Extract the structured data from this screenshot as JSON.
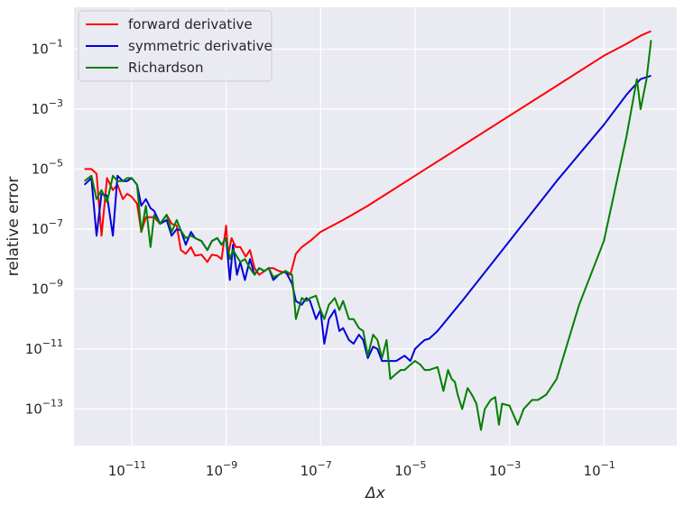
{
  "chart_data": {
    "type": "line",
    "xlabel": "Δx",
    "ylabel": "relative error",
    "xscale": "log",
    "yscale": "log",
    "xlim": [
      6e-13,
      3.5
    ],
    "ylim": [
      6e-15,
      2.5
    ],
    "x_ticks": [
      {
        "base": "10",
        "exp": "−11",
        "value": 1e-11
      },
      {
        "base": "10",
        "exp": "−9",
        "value": 1e-09
      },
      {
        "base": "10",
        "exp": "−7",
        "value": 1e-07
      },
      {
        "base": "10",
        "exp": "−5",
        "value": 1e-05
      },
      {
        "base": "10",
        "exp": "−3",
        "value": 0.001
      },
      {
        "base": "10",
        "exp": "−1",
        "value": 0.1
      }
    ],
    "y_ticks": [
      {
        "base": "10",
        "exp": "−1",
        "value": 0.1
      },
      {
        "base": "10",
        "exp": "−3",
        "value": 0.001
      },
      {
        "base": "10",
        "exp": "−5",
        "value": 1e-05
      },
      {
        "base": "10",
        "exp": "−7",
        "value": 1e-07
      },
      {
        "base": "10",
        "exp": "−9",
        "value": 1e-09
      },
      {
        "base": "10",
        "exp": "−11",
        "value": 1e-11
      },
      {
        "base": "10",
        "exp": "−13",
        "value": 1e-13
      }
    ],
    "grid": true,
    "legend_position": "top-left",
    "background": "#eaeaf2",
    "series": [
      {
        "name": "forward derivative",
        "color": "#ff0000",
        "points": [
          [
            1e-12,
            1e-05
          ],
          [
            1.4e-12,
            1e-05
          ],
          [
            1.8e-12,
            7e-06
          ],
          [
            2.3e-12,
            6e-08
          ],
          [
            3e-12,
            5e-06
          ],
          [
            4e-12,
            2e-06
          ],
          [
            5e-12,
            3e-06
          ],
          [
            6.5e-12,
            1e-06
          ],
          [
            8e-12,
            1.5e-06
          ],
          [
            1e-11,
            1.2e-06
          ],
          [
            1.3e-11,
            7e-07
          ],
          [
            1.6e-11,
            8e-08
          ],
          [
            2e-11,
            2.5e-07
          ],
          [
            3e-11,
            2.5e-07
          ],
          [
            4e-11,
            1.5e-07
          ],
          [
            5.5e-11,
            3e-07
          ],
          [
            7e-11,
            1.5e-07
          ],
          [
            9e-11,
            1.3e-07
          ],
          [
            1.1e-10,
            2e-08
          ],
          [
            1.4e-10,
            1.5e-08
          ],
          [
            1.8e-10,
            2.5e-08
          ],
          [
            2.2e-10,
            1.3e-08
          ],
          [
            3e-10,
            1.4e-08
          ],
          [
            4e-10,
            8e-09
          ],
          [
            5e-10,
            1.4e-08
          ],
          [
            6.5e-10,
            1.3e-08
          ],
          [
            8e-10,
            1e-08
          ],
          [
            1e-09,
            1.3e-07
          ],
          [
            1.1e-09,
            1.3e-08
          ],
          [
            1.3e-09,
            5e-08
          ],
          [
            1.6e-09,
            2.5e-08
          ],
          [
            2e-09,
            2.5e-08
          ],
          [
            2.6e-09,
            1.2e-08
          ],
          [
            3.2e-09,
            2e-08
          ],
          [
            4e-09,
            5e-09
          ],
          [
            5e-09,
            3e-09
          ],
          [
            6.5e-09,
            4e-09
          ],
          [
            8e-09,
            5e-09
          ],
          [
            1e-08,
            5e-09
          ],
          [
            1.3e-08,
            4e-09
          ],
          [
            1.8e-08,
            3.5e-09
          ],
          [
            2.3e-08,
            3e-09
          ],
          [
            3e-08,
            1.5e-08
          ],
          [
            4e-08,
            2.5e-08
          ],
          [
            6e-08,
            4e-08
          ],
          [
            1e-07,
            8e-08
          ],
          [
            3e-07,
            2e-07
          ],
          [
            1e-06,
            6e-07
          ],
          [
            1e-05,
            6e-06
          ],
          [
            0.0001,
            6e-05
          ],
          [
            0.001,
            0.0006
          ],
          [
            0.01,
            0.006
          ],
          [
            0.1,
            0.06
          ],
          [
            0.3,
            0.15
          ],
          [
            0.6,
            0.28
          ],
          [
            1.0,
            0.4
          ]
        ]
      },
      {
        "name": "symmetric derivative",
        "color": "#0000dd",
        "points": [
          [
            1e-12,
            3e-06
          ],
          [
            1.4e-12,
            5e-06
          ],
          [
            1.8e-12,
            6e-08
          ],
          [
            2.3e-12,
            1.5e-06
          ],
          [
            3e-12,
            1.3e-06
          ],
          [
            4e-12,
            6e-08
          ],
          [
            5e-12,
            6e-06
          ],
          [
            6.5e-12,
            4e-06
          ],
          [
            8e-12,
            4e-06
          ],
          [
            1e-11,
            5e-06
          ],
          [
            1.3e-11,
            3e-06
          ],
          [
            1.6e-11,
            6e-07
          ],
          [
            2e-11,
            1e-06
          ],
          [
            2.5e-11,
            5e-07
          ],
          [
            3e-11,
            4e-07
          ],
          [
            4e-11,
            1.5e-07
          ],
          [
            5.5e-11,
            2e-07
          ],
          [
            7e-11,
            6e-08
          ],
          [
            9e-11,
            1e-07
          ],
          [
            1.1e-10,
            9e-08
          ],
          [
            1.4e-10,
            3e-08
          ],
          [
            1.8e-10,
            8e-08
          ],
          [
            2.2e-10,
            5e-08
          ],
          [
            3e-10,
            4e-08
          ],
          [
            4e-10,
            2e-08
          ],
          [
            5e-10,
            4e-08
          ],
          [
            6.5e-10,
            5e-08
          ],
          [
            8e-10,
            3e-08
          ],
          [
            1e-09,
            5e-08
          ],
          [
            1.2e-09,
            2e-09
          ],
          [
            1.4e-09,
            3e-08
          ],
          [
            1.7e-09,
            3e-09
          ],
          [
            2e-09,
            8e-09
          ],
          [
            2.5e-09,
            2e-09
          ],
          [
            3.2e-09,
            1e-08
          ],
          [
            4e-09,
            3e-09
          ],
          [
            5e-09,
            5e-09
          ],
          [
            6.5e-09,
            4e-09
          ],
          [
            8e-09,
            5e-09
          ],
          [
            1e-08,
            2e-09
          ],
          [
            1.3e-08,
            3e-09
          ],
          [
            1.8e-08,
            4e-09
          ],
          [
            2.5e-08,
            1.5e-09
          ],
          [
            3e-08,
            4e-10
          ],
          [
            4e-08,
            3e-10
          ],
          [
            5e-08,
            5e-10
          ],
          [
            6e-08,
            4e-10
          ],
          [
            8e-08,
            1e-10
          ],
          [
            1e-07,
            2e-10
          ],
          [
            1.2e-07,
            1.5e-11
          ],
          [
            1.5e-07,
            1e-10
          ],
          [
            2e-07,
            2e-10
          ],
          [
            2.5e-07,
            4e-11
          ],
          [
            3e-07,
            5e-11
          ],
          [
            4e-07,
            2e-11
          ],
          [
            5e-07,
            1.5e-11
          ],
          [
            6.5e-07,
            3e-11
          ],
          [
            8e-07,
            2e-11
          ],
          [
            1e-06,
            5e-12
          ],
          [
            1.3e-06,
            1.2e-11
          ],
          [
            1.6e-06,
            1e-11
          ],
          [
            2e-06,
            4e-12
          ],
          [
            3e-06,
            4e-12
          ],
          [
            4e-06,
            4e-12
          ],
          [
            6e-06,
            6e-12
          ],
          [
            8e-06,
            4e-12
          ],
          [
            1e-05,
            1e-11
          ],
          [
            1.3e-05,
            1.5e-11
          ],
          [
            1.6e-05,
            2e-11
          ],
          [
            2e-05,
            2.2e-11
          ],
          [
            3e-05,
            4e-11
          ],
          [
            0.0001,
            4e-10
          ],
          [
            0.001,
            4e-08
          ],
          [
            0.01,
            4e-06
          ],
          [
            0.1,
            0.0003
          ],
          [
            0.3,
            0.003
          ],
          [
            0.6,
            0.01
          ],
          [
            1.0,
            0.013
          ]
        ]
      },
      {
        "name": "Richardson",
        "color": "#007f00",
        "points": [
          [
            1e-12,
            4e-06
          ],
          [
            1.4e-12,
            6e-06
          ],
          [
            1.8e-12,
            1e-06
          ],
          [
            2.3e-12,
            2e-06
          ],
          [
            3e-12,
            8e-07
          ],
          [
            4e-12,
            6e-06
          ],
          [
            5e-12,
            4e-06
          ],
          [
            6.5e-12,
            4e-06
          ],
          [
            8e-12,
            5e-06
          ],
          [
            1e-11,
            5e-06
          ],
          [
            1.3e-11,
            3e-06
          ],
          [
            1.6e-11,
            8e-08
          ],
          [
            2e-11,
            6e-07
          ],
          [
            2.5e-11,
            2.5e-08
          ],
          [
            3e-11,
            3e-07
          ],
          [
            4e-11,
            1.5e-07
          ],
          [
            5.5e-11,
            3e-07
          ],
          [
            7e-11,
            8e-08
          ],
          [
            9e-11,
            2e-07
          ],
          [
            1.1e-10,
            9e-08
          ],
          [
            1.4e-10,
            5e-08
          ],
          [
            1.8e-10,
            6e-08
          ],
          [
            2.2e-10,
            5e-08
          ],
          [
            3e-10,
            4e-08
          ],
          [
            4e-10,
            2e-08
          ],
          [
            5e-10,
            4e-08
          ],
          [
            6.5e-10,
            5e-08
          ],
          [
            8e-10,
            3e-08
          ],
          [
            1e-09,
            5e-08
          ],
          [
            1.2e-09,
            1e-08
          ],
          [
            1.4e-09,
            2e-08
          ],
          [
            1.7e-09,
            1.2e-08
          ],
          [
            2e-09,
            8e-09
          ],
          [
            2.5e-09,
            1e-08
          ],
          [
            3.2e-09,
            5e-09
          ],
          [
            4e-09,
            3e-09
          ],
          [
            5e-09,
            5e-09
          ],
          [
            6.5e-09,
            4e-09
          ],
          [
            8e-09,
            5e-09
          ],
          [
            1e-08,
            2.5e-09
          ],
          [
            1.3e-08,
            3e-09
          ],
          [
            1.8e-08,
            4e-09
          ],
          [
            2.5e-08,
            3e-09
          ],
          [
            3e-08,
            1e-10
          ],
          [
            4e-08,
            5e-10
          ],
          [
            5e-08,
            4e-10
          ],
          [
            6e-08,
            5e-10
          ],
          [
            8e-08,
            6e-10
          ],
          [
            1e-07,
            2e-10
          ],
          [
            1.2e-07,
            1e-10
          ],
          [
            1.5e-07,
            3e-10
          ],
          [
            2e-07,
            5e-10
          ],
          [
            2.5e-07,
            2e-10
          ],
          [
            3e-07,
            4e-10
          ],
          [
            4e-07,
            1e-10
          ],
          [
            5e-07,
            1e-10
          ],
          [
            6.5e-07,
            5e-11
          ],
          [
            8e-07,
            4e-11
          ],
          [
            1e-06,
            6e-12
          ],
          [
            1.3e-06,
            3e-11
          ],
          [
            1.6e-06,
            2e-11
          ],
          [
            2e-06,
            5e-12
          ],
          [
            2.5e-06,
            2e-11
          ],
          [
            3e-06,
            1e-12
          ],
          [
            4e-06,
            1.5e-12
          ],
          [
            5e-06,
            2e-12
          ],
          [
            6e-06,
            2e-12
          ],
          [
            8e-06,
            3e-12
          ],
          [
            1e-05,
            4e-12
          ],
          [
            1.3e-05,
            3e-12
          ],
          [
            1.6e-05,
            2e-12
          ],
          [
            2e-05,
            2e-12
          ],
          [
            3e-05,
            2.5e-12
          ],
          [
            4e-05,
            4e-13
          ],
          [
            5e-05,
            2e-12
          ],
          [
            6e-05,
            1e-12
          ],
          [
            7e-05,
            8e-13
          ],
          [
            8e-05,
            3e-13
          ],
          [
            0.0001,
            1e-13
          ],
          [
            0.00013,
            5e-13
          ],
          [
            0.00016,
            3e-13
          ],
          [
            0.0002,
            1.5e-13
          ],
          [
            0.00025,
            2e-14
          ],
          [
            0.0003,
            1e-13
          ],
          [
            0.0004,
            2e-13
          ],
          [
            0.0005,
            2.5e-13
          ],
          [
            0.0006,
            3e-14
          ],
          [
            0.0007,
            1.5e-13
          ],
          [
            0.001,
            1.3e-13
          ],
          [
            0.0015,
            3e-14
          ],
          [
            0.002,
            1e-13
          ],
          [
            0.003,
            2e-13
          ],
          [
            0.004,
            2e-13
          ],
          [
            0.006,
            3e-13
          ],
          [
            0.01,
            1e-12
          ],
          [
            0.03,
            3e-10
          ],
          [
            0.1,
            4e-08
          ],
          [
            0.3,
            0.00012
          ],
          [
            0.5,
            0.01
          ],
          [
            0.6,
            0.001
          ],
          [
            0.8,
            0.01
          ],
          [
            1.0,
            0.2
          ]
        ]
      }
    ]
  }
}
